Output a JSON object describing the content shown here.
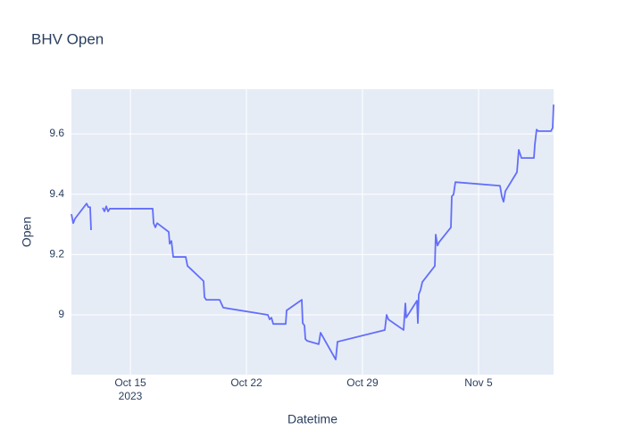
{
  "chart_data": {
    "type": "line",
    "title": "BHV Open",
    "x_label": "Datetime",
    "y_label": "Open",
    "x": [
      "2023-10-11 10:42",
      "2023-10-11 13:17",
      "2023-10-11 15:52",
      "2023-10-12 08:40",
      "2023-10-12 11:15",
      "2023-10-12 13:50",
      "2023-10-12 15:08",
      "2023-10-13 07:00",
      "2023-10-13 07:56",
      "2023-10-13 10:31",
      "2023-10-13 13:06",
      "2023-10-13 15:41",
      "2023-10-13 18:16",
      "2023-10-16 08:19",
      "2023-10-16 09:36",
      "2023-10-16 12:11",
      "2023-10-16 14:46",
      "2023-10-17 07:34",
      "2023-10-17 08:52",
      "2023-10-17 11:27",
      "2023-10-17 14:02",
      "2023-10-18 08:08",
      "2023-10-18 10:43",
      "2023-10-18 13:18",
      "2023-10-19 09:59",
      "2023-10-19 11:16",
      "2023-10-19 13:51",
      "2023-10-20 09:14",
      "2023-10-20 14:25",
      "2023-10-23 07:02",
      "2023-10-23 09:37",
      "2023-10-23 12:12",
      "2023-10-23 14:47",
      "2023-10-24 08:52",
      "2023-10-24 10:10",
      "2023-10-25 08:08",
      "2023-10-25 09:26",
      "2023-10-25 12:01",
      "2023-10-25 13:19",
      "2023-10-25 15:54",
      "2023-10-26 08:42",
      "2023-10-26 11:17",
      "2023-10-27 09:15",
      "2023-10-27 11:50",
      "2023-10-30 08:20",
      "2023-10-30 10:55",
      "2023-10-30 13:30",
      "2023-10-31 11:28",
      "2023-10-31 12:46",
      "2023-10-31 14:04",
      "2023-10-31 15:21",
      "2023-11-01 06:52",
      "2023-11-01 08:09",
      "2023-11-01 09:27",
      "2023-11-01 12:02",
      "2023-11-01 14:37",
      "2023-11-02 08:43",
      "2023-11-02 10:00",
      "2023-11-02 12:35",
      "2023-11-02 15:10",
      "2023-11-03 07:58",
      "2023-11-03 09:16",
      "2023-11-03 11:51",
      "2023-11-03 14:26",
      "2023-11-06 07:03",
      "2023-11-06 09:38",
      "2023-11-06 12:13",
      "2023-11-06 14:48",
      "2023-11-07 07:36",
      "2023-11-07 10:11",
      "2023-11-07 14:04",
      "2023-11-08 08:10",
      "2023-11-08 09:27",
      "2023-11-08 12:02",
      "2023-11-08 14:37",
      "2023-11-09 08:43",
      "2023-11-09 11:18",
      "2023-11-09 12:35"
    ],
    "series": [
      {
        "name": "Open",
        "color": "#636efa",
        "values": [
          9.334,
          9.304,
          9.319,
          9.369,
          9.357,
          9.357,
          9.281,
          null,
          9.355,
          9.343,
          9.36,
          9.343,
          9.352,
          9.352,
          9.304,
          9.29,
          9.304,
          9.275,
          9.236,
          9.245,
          9.192,
          9.192,
          9.162,
          9.157,
          9.112,
          9.059,
          9.05,
          9.05,
          9.024,
          9.0,
          8.985,
          8.991,
          8.97,
          8.97,
          9.015,
          9.05,
          8.973,
          8.965,
          8.92,
          8.914,
          8.903,
          8.941,
          8.852,
          8.911,
          8.95,
          9.0,
          8.985,
          8.95,
          8.994,
          9.038,
          8.991,
          9.047,
          8.973,
          9.068,
          9.083,
          9.109,
          9.162,
          9.266,
          9.23,
          9.242,
          9.29,
          9.393,
          9.399,
          9.44,
          9.428,
          9.393,
          9.375,
          9.41,
          9.473,
          9.547,
          9.52,
          9.52,
          9.564,
          9.614,
          9.609,
          9.609,
          9.62,
          9.697
        ]
      }
    ],
    "xlim": [
      "2023-10-11 10:42",
      "2023-11-09 12:35"
    ],
    "xticks": [
      {
        "value": "2023-10-15",
        "label": "Oct 15"
      },
      {
        "value": "2023-10-22",
        "label": "Oct 22"
      },
      {
        "value": "2023-10-29",
        "label": "Oct 29"
      },
      {
        "value": "2023-11-05",
        "label": "Nov 5"
      }
    ],
    "x_year_label": "2023",
    "ylim": [
      8.802,
      9.748
    ],
    "yticks": [
      9,
      9.2,
      9.4,
      9.6
    ],
    "grid": true
  }
}
